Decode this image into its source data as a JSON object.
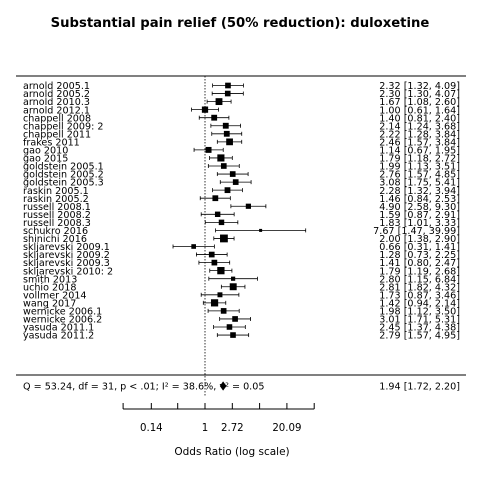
{
  "chart_data": {
    "type": "forest",
    "title": "Substantial pain relief (50% reduction): duloxetine",
    "xlabel": "Odds Ratio (log scale)",
    "x_scale": "log",
    "xlim": [
      0.14,
      20.09
    ],
    "x_ticks": [
      {
        "value": 0.14,
        "label": "0.14"
      },
      {
        "value": 1,
        "label": "1"
      },
      {
        "value": 2.72,
        "label": "2.72"
      },
      {
        "value": 20.09,
        "label": "20.09"
      }
    ],
    "minor_ticks": [
      0.0498,
      0.3679,
      7.389,
      54.6
    ],
    "reference_line": 1,
    "studies": [
      {
        "name": "arnold 2005.1",
        "or": 2.32,
        "lo": 1.32,
        "hi": 4.09,
        "ci_text": "2.32 [1.32,  4.09]"
      },
      {
        "name": "arnold 2005.2",
        "or": 2.3,
        "lo": 1.3,
        "hi": 4.07,
        "ci_text": "2.30 [1.30,  4.07]"
      },
      {
        "name": "arnold 2010.3",
        "or": 1.67,
        "lo": 1.08,
        "hi": 2.6,
        "ci_text": "1.67 [1.08,  2.60]"
      },
      {
        "name": "arnold 2012.1",
        "or": 1.0,
        "lo": 0.61,
        "hi": 1.64,
        "ci_text": "1.00 [0.61,  1.64]"
      },
      {
        "name": "chappell 2008",
        "or": 1.4,
        "lo": 0.81,
        "hi": 2.4,
        "ci_text": "1.40 [0.81,  2.40]"
      },
      {
        "name": "chappell 2009: 2",
        "or": 2.14,
        "lo": 1.24,
        "hi": 3.68,
        "ci_text": "2.14 [1.24,  3.68]"
      },
      {
        "name": "chappell 2011",
        "or": 2.22,
        "lo": 1.28,
        "hi": 3.84,
        "ci_text": "2.22 [1.28,  3.84]"
      },
      {
        "name": "frakes 2011",
        "or": 2.46,
        "lo": 1.57,
        "hi": 3.84,
        "ci_text": "2.46 [1.57,  3.84]"
      },
      {
        "name": "gao 2010",
        "or": 1.14,
        "lo": 0.67,
        "hi": 1.95,
        "ci_text": "1.14 [0.67,  1.95]"
      },
      {
        "name": "gao 2015",
        "or": 1.79,
        "lo": 1.18,
        "hi": 2.72,
        "ci_text": "1.79 [1.18,  2.72]"
      },
      {
        "name": "goldstein 2005.1",
        "or": 1.99,
        "lo": 1.13,
        "hi": 3.51,
        "ci_text": "1.99 [1.13,  3.51]"
      },
      {
        "name": "goldstein 2005.2",
        "or": 2.76,
        "lo": 1.57,
        "hi": 4.85,
        "ci_text": "2.76 [1.57,  4.85]"
      },
      {
        "name": "goldstein 2005.3",
        "or": 3.08,
        "lo": 1.75,
        "hi": 5.41,
        "ci_text": "3.08 [1.75,  5.41]"
      },
      {
        "name": "raskin 2005.1",
        "or": 2.28,
        "lo": 1.32,
        "hi": 3.94,
        "ci_text": "2.28 [1.32,  3.94]"
      },
      {
        "name": "raskin 2005.2",
        "or": 1.46,
        "lo": 0.84,
        "hi": 2.53,
        "ci_text": "1.46 [0.84,  2.53]"
      },
      {
        "name": "russell 2008.1",
        "or": 4.9,
        "lo": 2.58,
        "hi": 9.3,
        "ci_text": "4.90 [2.58,  9.30]"
      },
      {
        "name": "russell 2008.2",
        "or": 1.59,
        "lo": 0.87,
        "hi": 2.91,
        "ci_text": "1.59 [0.87,  2.91]"
      },
      {
        "name": "russell 2008.3",
        "or": 1.83,
        "lo": 1.01,
        "hi": 3.33,
        "ci_text": "1.83 [1.01,  3.33]"
      },
      {
        "name": "schukro 2016",
        "or": 7.67,
        "lo": 1.47,
        "hi": 39.99,
        "ci_text": "7.67 [1.47, 39.99]"
      },
      {
        "name": "shinichi 2016",
        "or": 2.0,
        "lo": 1.38,
        "hi": 2.9,
        "ci_text": "2.00 [1.38,  2.90]"
      },
      {
        "name": "skljarevski 2009.1",
        "or": 0.66,
        "lo": 0.31,
        "hi": 1.41,
        "ci_text": "0.66 [0.31,  1.41]"
      },
      {
        "name": "skljarevski 2009.2",
        "or": 1.28,
        "lo": 0.73,
        "hi": 2.25,
        "ci_text": "1.28 [0.73,  2.25]"
      },
      {
        "name": "skljarevski 2009.3",
        "or": 1.41,
        "lo": 0.8,
        "hi": 2.47,
        "ci_text": "1.41 [0.80,  2.47]"
      },
      {
        "name": "skljarevski 2010: 2",
        "or": 1.79,
        "lo": 1.19,
        "hi": 2.68,
        "ci_text": "1.79 [1.19,  2.68]"
      },
      {
        "name": "smith 2013",
        "or": 2.8,
        "lo": 1.15,
        "hi": 6.84,
        "ci_text": "2.80 [1.15,  6.84]"
      },
      {
        "name": "uchio 2018",
        "or": 2.81,
        "lo": 1.82,
        "hi": 4.32,
        "ci_text": "2.81 [1.82,  4.32]"
      },
      {
        "name": "vollmer 2014",
        "or": 1.73,
        "lo": 0.87,
        "hi": 3.46,
        "ci_text": "1.73 [0.87,  3.46]"
      },
      {
        "name": "wang 2017",
        "or": 1.42,
        "lo": 0.94,
        "hi": 2.14,
        "ci_text": "1.42 [0.94,  2.14]"
      },
      {
        "name": "wernicke 2006.1",
        "or": 1.98,
        "lo": 1.12,
        "hi": 3.5,
        "ci_text": "1.98 [1.12,  3.50]"
      },
      {
        "name": "wernicke 2006.2",
        "or": 3.01,
        "lo": 1.71,
        "hi": 5.31,
        "ci_text": "3.01 [1.71,  5.31]"
      },
      {
        "name": "yasuda 2011.1",
        "or": 2.45,
        "lo": 1.37,
        "hi": 4.38,
        "ci_text": "2.45 [1.37,  4.38]"
      },
      {
        "name": "yasuda 2011.2",
        "or": 2.79,
        "lo": 1.57,
        "hi": 4.95,
        "ci_text": "2.79 [1.57,  4.95]"
      }
    ],
    "pooled": {
      "or": 1.94,
      "lo": 1.72,
      "hi": 2.2,
      "ci_text": "1.94 [1.72,  2.20]",
      "heterogeneity_text": "Q = 53.24, df = 31, p < .01; I² = 38.6%, τ² = 0.05"
    }
  }
}
